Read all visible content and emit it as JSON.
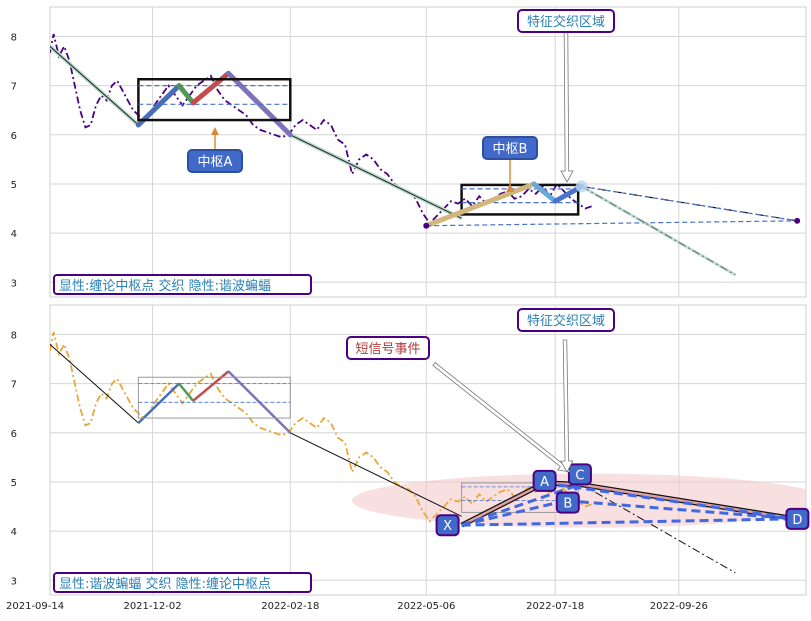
{
  "chart_data": [
    {
      "type": "line",
      "panel": "top",
      "ylim": [
        2.7,
        8.6
      ],
      "xlim": [
        "2021-09-14",
        "2022-12-07"
      ],
      "yticks": [
        3,
        4,
        5,
        6,
        7,
        8
      ],
      "grid": true,
      "legend_box": "显性:缠论中枢点 交织 隐性:谐波蝙蝠",
      "price_series_color": "#4b0082",
      "price_series": {
        "x": [
          "2021-09-26",
          "2021-09-28",
          "2021-10-01",
          "2021-10-04",
          "2021-10-07",
          "2021-10-10",
          "2021-10-13",
          "2021-10-16",
          "2021-10-19",
          "2021-10-22",
          "2021-10-25",
          "2021-10-28",
          "2021-10-31",
          "2021-11-03",
          "2021-11-06",
          "2021-11-09",
          "2021-11-12",
          "2021-11-15",
          "2021-11-18",
          "2021-11-21",
          "2021-11-24",
          "2021-11-27",
          "2021-11-30",
          "2021-12-03",
          "2021-12-07",
          "2021-12-11",
          "2021-12-15",
          "2021-12-19",
          "2021-12-23",
          "2021-12-27",
          "2021-12-31",
          "2022-01-04",
          "2022-01-08",
          "2022-01-12",
          "2022-01-16",
          "2022-01-20",
          "2022-01-24",
          "2022-01-28",
          "2022-02-01",
          "2022-02-05",
          "2022-02-09",
          "2022-02-13",
          "2022-02-17",
          "2022-02-21",
          "2022-02-25",
          "2022-03-01",
          "2022-03-05",
          "2022-03-09",
          "2022-03-13",
          "2022-03-17",
          "2022-03-21",
          "2022-03-25",
          "2022-03-29",
          "2022-04-02",
          "2022-04-06",
          "2022-04-10",
          "2022-04-14",
          "2022-04-18",
          "2022-04-22",
          "2022-04-26",
          "2022-04-30",
          "2022-05-04",
          "2022-05-08",
          "2022-05-12",
          "2022-05-16",
          "2022-05-20",
          "2022-05-24",
          "2022-05-28",
          "2022-06-01",
          "2022-06-05",
          "2022-06-09",
          "2022-06-13",
          "2022-06-17",
          "2022-06-21",
          "2022-06-25",
          "2022-06-29",
          "2022-07-03",
          "2022-07-07",
          "2022-07-11",
          "2022-07-15",
          "2022-07-19",
          "2022-07-23",
          "2022-07-27",
          "2022-07-31",
          "2022-08-04",
          "2022-08-08"
        ],
        "y": [
          6.9,
          7.1,
          6.9,
          7.5,
          8.05,
          7.6,
          7.8,
          7.5,
          7.0,
          6.5,
          6.15,
          6.2,
          6.6,
          6.8,
          6.7,
          7.0,
          7.1,
          6.9,
          6.7,
          6.5,
          6.4,
          6.3,
          6.4,
          6.6,
          6.8,
          7.0,
          6.8,
          6.6,
          6.8,
          7.0,
          7.1,
          7.2,
          6.9,
          6.7,
          6.6,
          6.5,
          6.4,
          6.2,
          6.1,
          6.05,
          6.0,
          5.95,
          6.0,
          6.2,
          6.3,
          6.2,
          6.1,
          6.3,
          6.2,
          5.9,
          5.8,
          5.2,
          5.5,
          5.6,
          5.5,
          5.3,
          5.2,
          5.0,
          4.9,
          4.85,
          4.7,
          4.4,
          4.2,
          4.35,
          4.5,
          4.65,
          4.6,
          4.7,
          4.55,
          4.75,
          4.6,
          4.7,
          4.8,
          4.85,
          4.7,
          4.75,
          4.9,
          4.8,
          4.95,
          4.75,
          5.0,
          4.85,
          4.7,
          4.6,
          4.5,
          4.55
        ]
      },
      "zigzag": [
        {
          "x": "2021-09-28",
          "y": 8.02
        },
        {
          "x": "2021-11-24",
          "y": 6.2
        },
        {
          "x": "2021-12-17",
          "y": 7.0
        },
        {
          "x": "2021-12-25",
          "y": 6.65
        },
        {
          "x": "2022-01-14",
          "y": 7.25
        },
        {
          "x": "2022-02-18",
          "y": 6.0
        },
        {
          "x": "2022-05-26",
          "y": 4.3
        }
      ],
      "zigzag_colors": [
        "#4b6db3",
        "#4f9a55",
        "#c64a4a",
        "#7d73b7"
      ],
      "zhongshu": [
        {
          "label": "中枢A",
          "x0": "2021-11-24",
          "x1": "2022-02-18",
          "y0": 6.3,
          "y1": 7.13,
          "inner": [
            6.62,
            7.0
          ]
        },
        {
          "label": "中枢B",
          "x0": "2022-05-26",
          "x1": "2022-07-31",
          "y0": 4.38,
          "y1": 4.98,
          "inner": [
            4.62,
            4.9
          ]
        }
      ],
      "harmonic_xabcd": [
        {
          "x": "2022-05-06",
          "y": 4.15
        },
        {
          "x": "2022-07-06",
          "y": 5.0
        },
        {
          "x": "2022-07-18",
          "y": 4.65
        },
        {
          "x": "2022-08-02",
          "y": 4.95
        }
      ],
      "fan_lines": [
        {
          "x0": "2022-08-02",
          "y0": 4.95,
          "x1": "2022-12-02",
          "y1": 4.25,
          "style": "dashdot"
        },
        {
          "x0": "2022-08-02",
          "y0": 4.95,
          "x1": "2022-10-28",
          "y1": 3.15,
          "style": "dashdot"
        },
        {
          "x0": "2022-05-06",
          "y0": 4.15,
          "x1": "2022-12-02",
          "y1": 4.25,
          "style": "dashed"
        },
        {
          "x0": "2022-08-02",
          "y0": 4.95,
          "x1": "2022-12-02",
          "y1": 4.25,
          "style": "dashed"
        }
      ],
      "annotations": {
        "feature_zone": "特征交织区域"
      }
    },
    {
      "type": "line",
      "panel": "bottom",
      "ylim": [
        2.7,
        8.6
      ],
      "xlim": [
        "2021-09-14",
        "2022-12-07"
      ],
      "yticks": [
        3,
        4,
        5,
        6,
        7,
        8
      ],
      "xticks": [
        "2021-09-14",
        "2021-12-02",
        "2022-02-18",
        "2022-05-06",
        "2022-07-18",
        "2022-09-26"
      ],
      "grid": true,
      "legend_box": "显性:谐波蝙蝠 交织 隐性:缠论中枢点",
      "price_series_color": "#e8a736",
      "harmonic_points": [
        {
          "label": "X",
          "x": "2022-05-26",
          "y": 4.12
        },
        {
          "label": "A",
          "x": "2022-07-12",
          "y": 4.98
        },
        {
          "label": "B",
          "x": "2022-07-24",
          "y": 4.62
        },
        {
          "label": "C",
          "x": "2022-08-01",
          "y": 4.95
        },
        {
          "label": "D",
          "x": "2022-12-01",
          "y": 4.25
        }
      ],
      "annotations": {
        "short_signal": "短信号事件",
        "feature_zone": "特征交织区域"
      }
    }
  ]
}
